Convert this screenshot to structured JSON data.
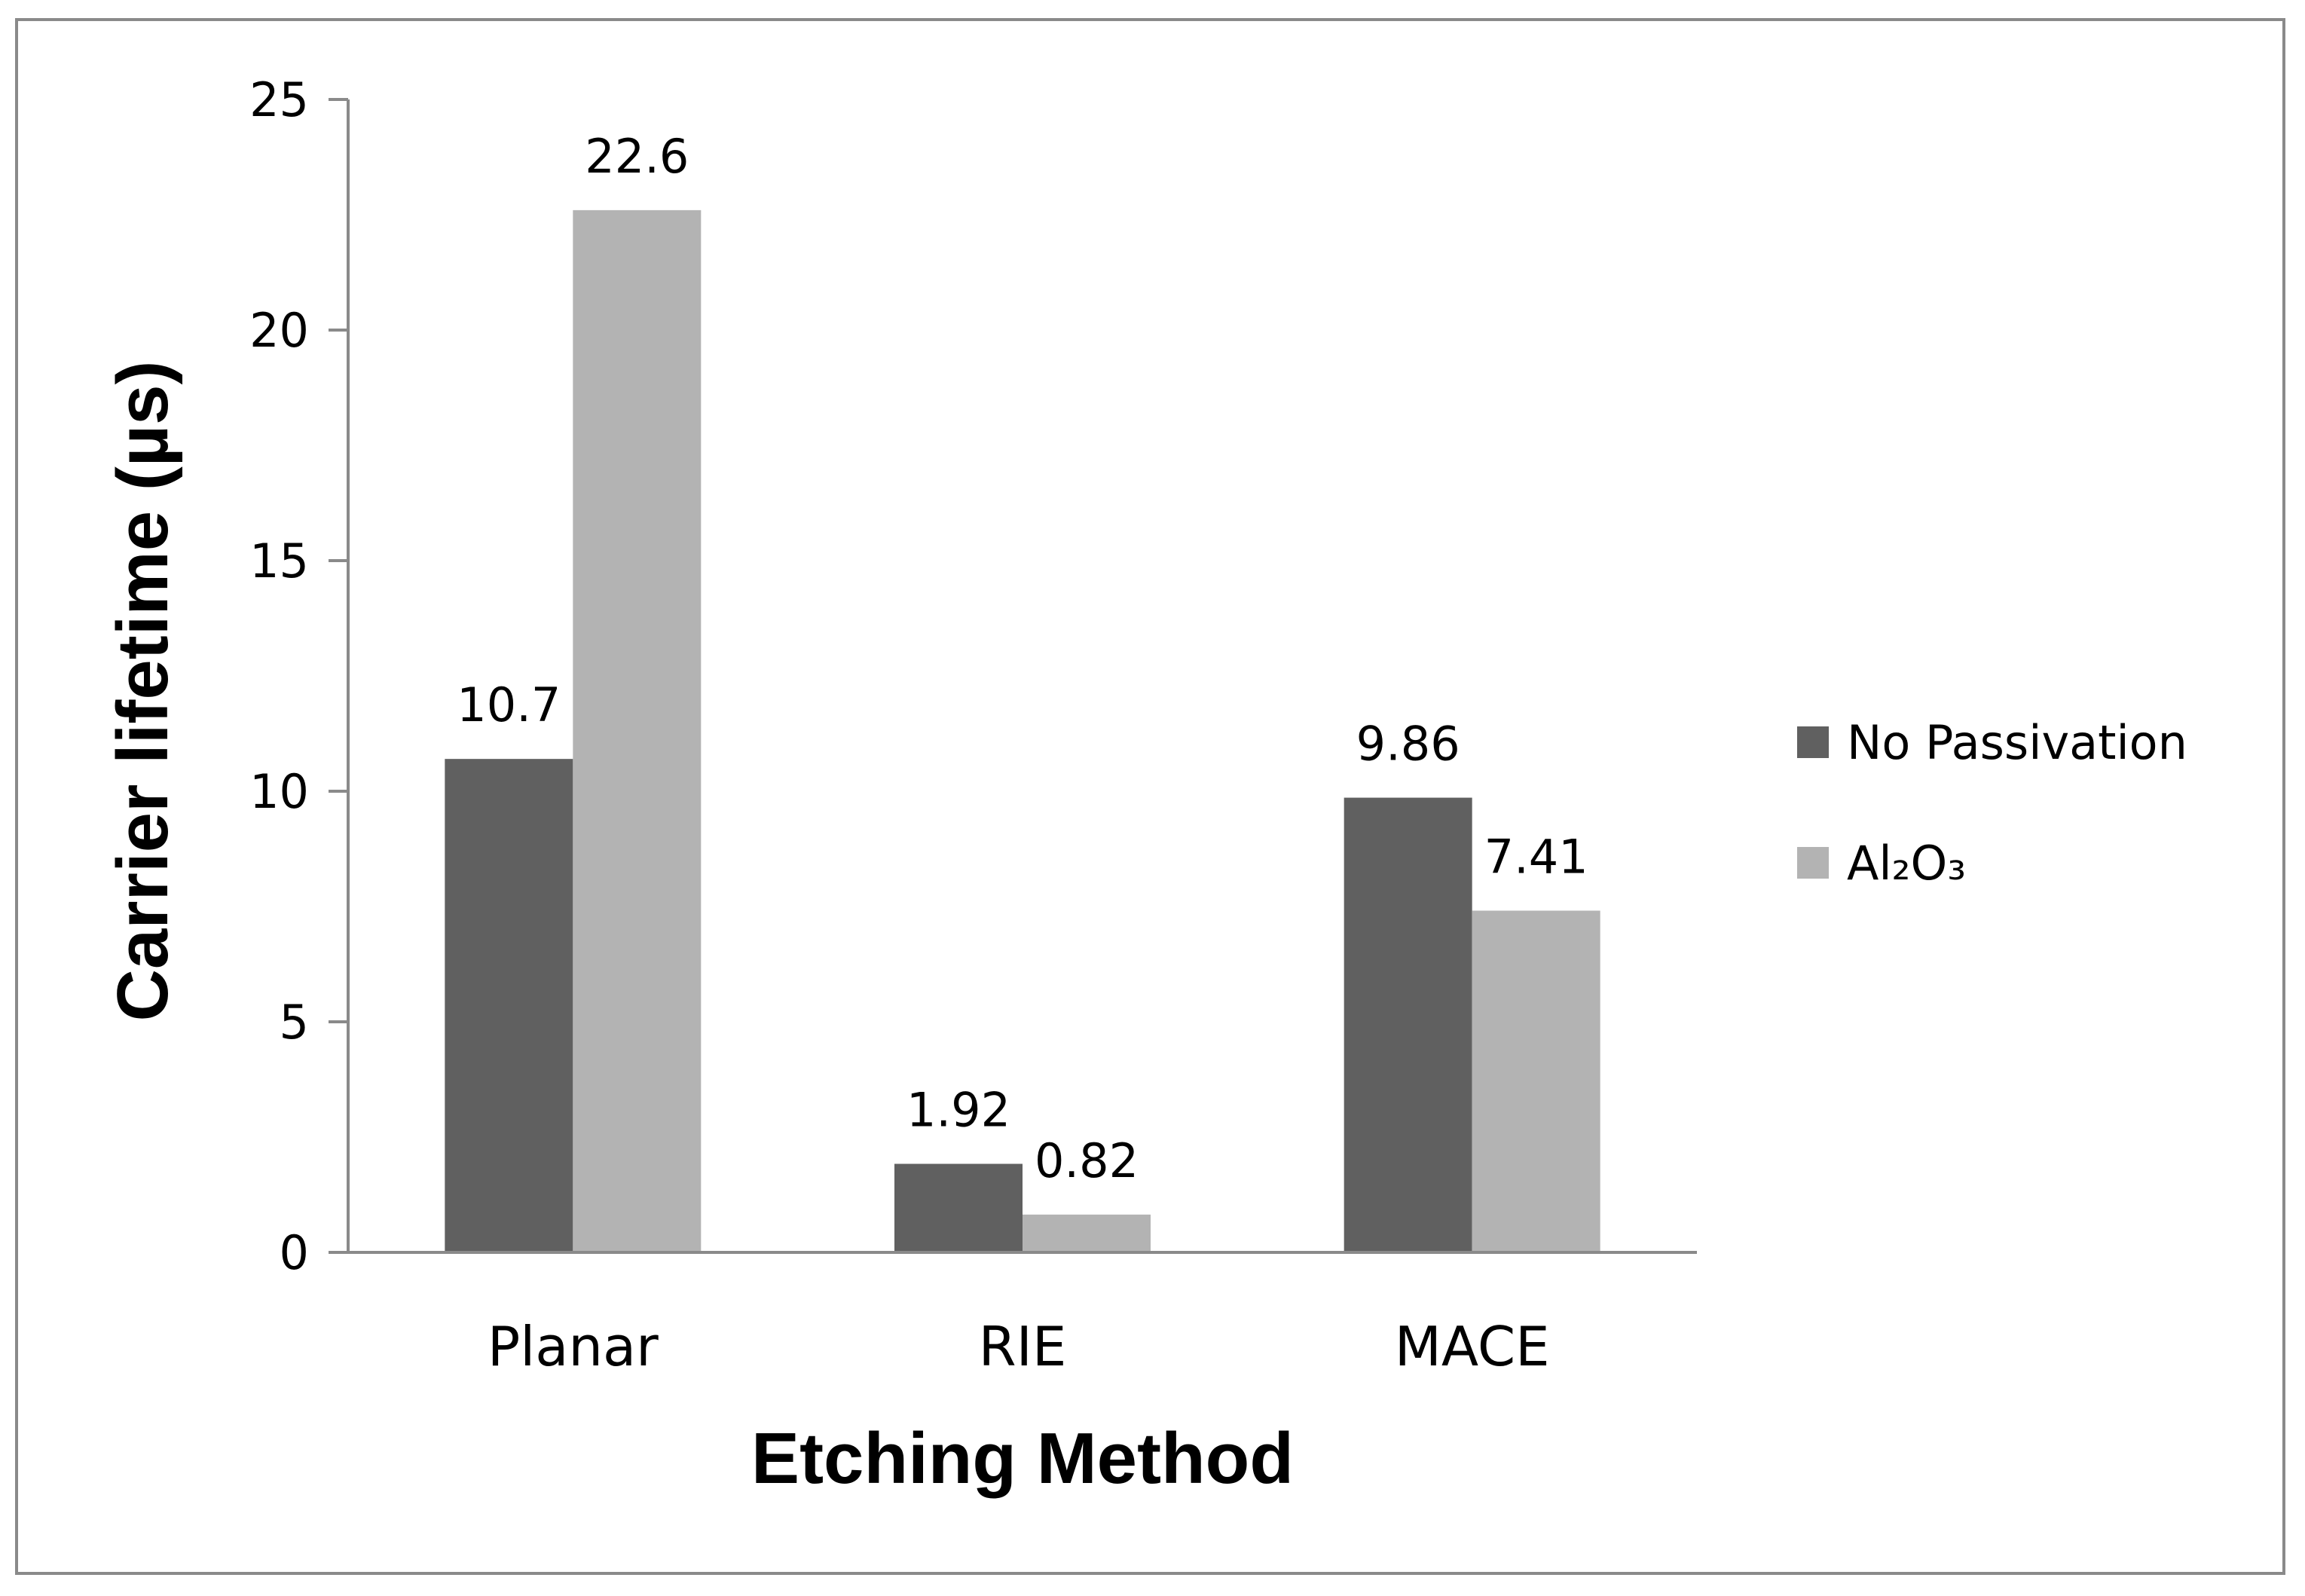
{
  "chart_data": {
    "type": "bar",
    "categories": [
      "Planar",
      "RIE",
      "MACE"
    ],
    "series": [
      {
        "name": "No Passivation",
        "values": [
          10.7,
          1.92,
          9.86
        ],
        "color": "#606060"
      },
      {
        "name": "Al₂O₃",
        "values": [
          22.6,
          0.82,
          7.41
        ],
        "color": "#b3b3b3"
      }
    ],
    "data_labels": [
      [
        "10.7",
        "1.92",
        "9.86"
      ],
      [
        "22.6",
        "0.82",
        "7.41"
      ]
    ],
    "xlabel": "Etching Method",
    "ylabel": "Carrier lifetime (µs)",
    "ylim": [
      0,
      25
    ],
    "yticks": [
      0,
      5,
      10,
      15,
      20,
      25
    ],
    "grid": false,
    "legend_position": "right"
  }
}
